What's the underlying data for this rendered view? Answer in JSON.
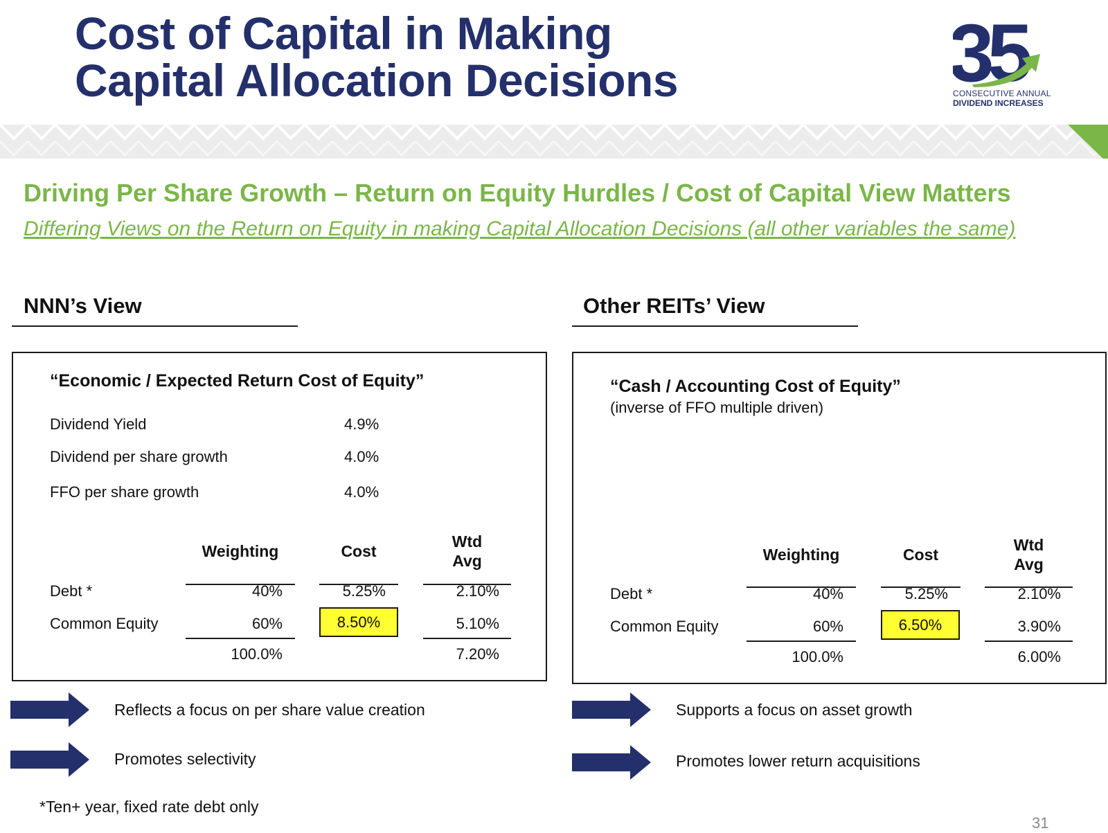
{
  "header": {
    "title_line1": "Cost of Capital in Making",
    "title_line2": "Capital Allocation Decisions",
    "logo": {
      "number": "35",
      "line1": "CONSECUTIVE ANNUAL",
      "line2": "DIVIDEND INCREASES",
      "colors": {
        "navy": "#24306b",
        "green": "#7ab648"
      }
    }
  },
  "subheading": "Driving Per Share Growth – Return on Equity Hurdles / Cost of Capital View Matters",
  "subheading_italic": "Differing Views on the Return on Equity in making Capital Allocation Decisions (all other variables the same)",
  "left": {
    "view_title": "NNN’s View",
    "panel_title": "“Economic / Expected Return Cost of Equity”",
    "metrics": [
      {
        "label": "Dividend Yield",
        "value": "4.9%"
      },
      {
        "label": "Dividend per share growth",
        "value": "4.0%"
      },
      {
        "label": "FFO per share growth",
        "value": "4.0%"
      }
    ],
    "table": {
      "headers": {
        "weighting": "Weighting",
        "cost": "Cost",
        "wtd_line1": "Wtd",
        "wtd_line2": "Avg"
      },
      "rows": [
        {
          "label": "Debt *",
          "weighting": "40%",
          "cost": "5.25%",
          "wtd": "2.10%"
        },
        {
          "label": "Common Equity",
          "weighting": "60%",
          "cost": "8.50%",
          "wtd": "5.10%"
        }
      ],
      "total_weighting": "100.0%",
      "total_wtd": "7.20%"
    },
    "bullets": [
      "Reflects a focus on per share value creation",
      "Promotes selectivity"
    ]
  },
  "right": {
    "view_title": "Other REITs’ View",
    "panel_title": "“Cash / Accounting Cost of Equity”",
    "panel_subtitle": "(inverse of FFO multiple driven)",
    "table": {
      "headers": {
        "weighting": "Weighting",
        "cost": "Cost",
        "wtd_line1": "Wtd",
        "wtd_line2": "Avg"
      },
      "rows": [
        {
          "label": "Debt *",
          "weighting": "40%",
          "cost": "5.25%",
          "wtd": "2.10%"
        },
        {
          "label": "Common Equity",
          "weighting": "60%",
          "cost": "6.50%",
          "wtd": "3.90%"
        }
      ],
      "total_weighting": "100.0%",
      "total_wtd": "6.00%"
    },
    "bullets": [
      "Supports a focus on asset growth",
      "Promotes lower return acquisitions"
    ]
  },
  "footnote": "*Ten+ year, fixed rate debt only",
  "page_number": "31",
  "colors": {
    "navy": "#24306b",
    "green": "#7ab648",
    "highlight": "#ffff33"
  }
}
